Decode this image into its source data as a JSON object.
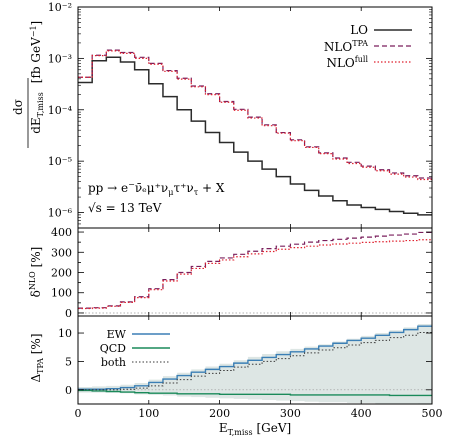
{
  "chart_data": [
    {
      "type": "line",
      "panel": "main",
      "ylabel": "dσ / dE_T,miss [fb GeV⁻¹]",
      "yscale": "log",
      "ylim": [
        5e-07,
        0.01
      ],
      "ytick_labels": [
        "10⁻⁶",
        "10⁻⁵",
        "10⁻⁴",
        "10⁻³",
        "10⁻²"
      ],
      "xlim": [
        0,
        500
      ],
      "annotation_process": "pp → e⁻ν̄ₑμ⁺ν_μτ⁺ν_τ + X",
      "annotation_energy": "√s = 13 TeV",
      "legend_position": "top-right",
      "bin_edges": [
        0,
        20,
        40,
        60,
        80,
        100,
        120,
        140,
        160,
        180,
        200,
        220,
        240,
        260,
        280,
        300,
        320,
        340,
        360,
        380,
        400,
        420,
        440,
        460,
        480,
        500
      ],
      "series": [
        {
          "name": "LO",
          "color": "#2b2b2b",
          "style": "solid",
          "values": [
            0.00034,
            0.0009,
            0.00105,
            0.00085,
            0.0006,
            0.00032,
            0.00018,
            0.0001,
            6e-05,
            3.6e-05,
            2.3e-05,
            1.5e-05,
            1e-05,
            7e-06,
            5e-06,
            3.6e-06,
            2.7e-06,
            2.1e-06,
            1.7e-06,
            1.4e-06,
            1.25e-06,
            1.15e-06,
            1.05e-06,
            9.7e-07,
            9e-07
          ]
        },
        {
          "name": "NLO^TPA",
          "color": "#7a1f5c",
          "style": "dashed",
          "values": [
            0.00043,
            0.00115,
            0.00145,
            0.0013,
            0.00105,
            0.0008,
            0.00058,
            0.00041,
            0.00029,
            0.000205,
            0.000145,
            0.000102,
            7.2e-05,
            5.1e-05,
            3.6e-05,
            2.6e-05,
            1.9e-05,
            1.45e-05,
            1.15e-05,
            9.5e-06,
            8e-06,
            6.8e-06,
            5.9e-06,
            5.2e-06,
            4.7e-06
          ]
        },
        {
          "name": "NLO^full",
          "color": "#e0202e",
          "style": "dotted",
          "values": [
            0.00043,
            0.00113,
            0.0014,
            0.00125,
            0.001,
            0.00077,
            0.00056,
            0.000395,
            0.00028,
            0.000197,
            0.00014,
            9.8e-05,
            6.9e-05,
            4.9e-05,
            3.5e-05,
            2.5e-05,
            1.85e-05,
            1.4e-05,
            1.1e-05,
            9e-06,
            7.6e-06,
            6.5e-06,
            5.6e-06,
            4.9e-06,
            4.4e-06
          ]
        }
      ]
    },
    {
      "type": "line",
      "panel": "ratio",
      "ylabel": "δ^NLO [%]",
      "ylim": [
        -15,
        420
      ],
      "ytick_values": [
        0,
        50,
        100,
        150,
        200,
        250,
        300,
        350,
        400
      ],
      "xlim": [
        0,
        500
      ],
      "bin_edges": [
        0,
        20,
        40,
        60,
        80,
        100,
        120,
        140,
        160,
        180,
        200,
        220,
        240,
        260,
        280,
        300,
        320,
        340,
        360,
        380,
        400,
        420,
        440,
        460,
        480,
        500
      ],
      "series": [
        {
          "name": "NLO^TPA",
          "color": "#7a1f5c",
          "style": "dashed",
          "values": [
            24,
            26,
            35,
            55,
            80,
            120,
            165,
            200,
            230,
            255,
            272,
            290,
            305,
            318,
            330,
            340,
            350,
            358,
            364,
            370,
            375,
            380,
            385,
            390,
            398
          ]
        },
        {
          "name": "NLO^full",
          "color": "#e0202e",
          "style": "dotted",
          "values": [
            22,
            24,
            33,
            52,
            76,
            115,
            158,
            192,
            220,
            245,
            262,
            278,
            292,
            304,
            315,
            323,
            330,
            336,
            341,
            345,
            349,
            352,
            355,
            358,
            362
          ]
        },
        {
          "name": "",
          "color": "#9a9a9a",
          "style": "dotted",
          "values": [
            0
          ]
        }
      ]
    },
    {
      "type": "line",
      "panel": "tpa",
      "ylabel": "Δ_TPA [%]",
      "xlabel": "E_T,miss [GeV]",
      "ylim": [
        -2.5,
        13
      ],
      "ytick_values": [
        0,
        5,
        10
      ],
      "xlim": [
        0,
        500
      ],
      "xtick_values": [
        0,
        100,
        200,
        300,
        400,
        500
      ],
      "legend_position": "top-left",
      "bin_edges": [
        0,
        20,
        40,
        60,
        80,
        100,
        120,
        140,
        160,
        180,
        200,
        220,
        240,
        260,
        280,
        300,
        320,
        340,
        360,
        380,
        400,
        420,
        440,
        460,
        480,
        500
      ],
      "band_upper": [
        0.5,
        0.6,
        0.7,
        0.9,
        1.2,
        1.8,
        2.4,
        3.0,
        3.6,
        4.1,
        4.6,
        5.2,
        5.8,
        6.3,
        6.8,
        7.2,
        7.6,
        8.0,
        8.5,
        9.0,
        9.5,
        10.0,
        10.5,
        11.0,
        11.6
      ],
      "band_lower": [
        -0.5,
        -0.5,
        -0.5,
        -0.6,
        -0.8,
        -0.9,
        -1.0,
        -1.2,
        -1.3,
        -1.4,
        -1.5,
        -1.6,
        -1.7,
        -1.8,
        -1.9,
        -2.0,
        -2.1,
        -2.2,
        -2.2,
        -2.3,
        -2.3,
        -2.4,
        -2.4,
        -2.4,
        -2.5
      ],
      "series": [
        {
          "name": "EW",
          "color": "#3b7fb5",
          "style": "solid",
          "values": [
            0.1,
            0.1,
            0.2,
            0.4,
            0.7,
            1.3,
            1.9,
            2.5,
            3.1,
            3.6,
            4.1,
            4.7,
            5.2,
            5.7,
            6.2,
            6.7,
            7.2,
            7.7,
            8.2,
            8.7,
            9.1,
            9.6,
            10.1,
            10.6,
            11.2
          ]
        },
        {
          "name": "QCD",
          "color": "#1a8a5a",
          "style": "solid",
          "values": [
            -0.1,
            -0.2,
            -0.3,
            -0.4,
            -0.5,
            -0.6,
            -0.6,
            -0.7,
            -0.7,
            -0.7,
            -0.8,
            -0.8,
            -0.8,
            -0.8,
            -0.8,
            -0.9,
            -0.9,
            -0.9,
            -0.9,
            -0.9,
            -0.9,
            -0.9,
            -1.0,
            -1.0,
            -1.0
          ]
        },
        {
          "name": "both",
          "color": "#3a3a3a",
          "style": "dotted",
          "values": [
            0.0,
            0.0,
            0.0,
            0.1,
            0.3,
            0.7,
            1.2,
            1.8,
            2.4,
            2.9,
            3.4,
            4.0,
            4.5,
            5.0,
            5.5,
            6.0,
            6.5,
            7.0,
            7.4,
            7.9,
            8.3,
            8.7,
            9.2,
            9.6,
            10.1
          ]
        }
      ]
    }
  ],
  "labels": {
    "main_ylabel_num": "dσ",
    "main_ylabel_den": "dE",
    "main_ylabel_den_sub": "T,miss",
    "main_ylabel_unit": "[fb GeV",
    "main_ylabel_unit_sup": "−1",
    "main_ylabel_unit_end": "]",
    "ratio_ylabel": "δ",
    "ratio_ylabel_sup": "NLO",
    "ratio_ylabel_unit": "[%]",
    "tpa_ylabel": "Δ",
    "tpa_ylabel_sub": "TPA",
    "tpa_ylabel_unit": "[%]",
    "xlabel": "E",
    "xlabel_sub": "T,miss",
    "xlabel_unit": "[GeV]",
    "proc_text": "pp → e",
    "proc_sup": "−",
    "proc_rest": "ν̄ₑμ⁺ν",
    "proc_sub_mu": "μ",
    "proc_tail": "τ⁺ν",
    "proc_sub_tau": "τ",
    "proc_end": " + X",
    "energy_text": "√s = 13 TeV",
    "legend_main": [
      {
        "label": "LO",
        "sup": ""
      },
      {
        "label": "NLO",
        "sup": "TPA"
      },
      {
        "label": "NLO",
        "sup": "full"
      }
    ],
    "legend_tpa": [
      "EW",
      "QCD",
      "both"
    ]
  }
}
